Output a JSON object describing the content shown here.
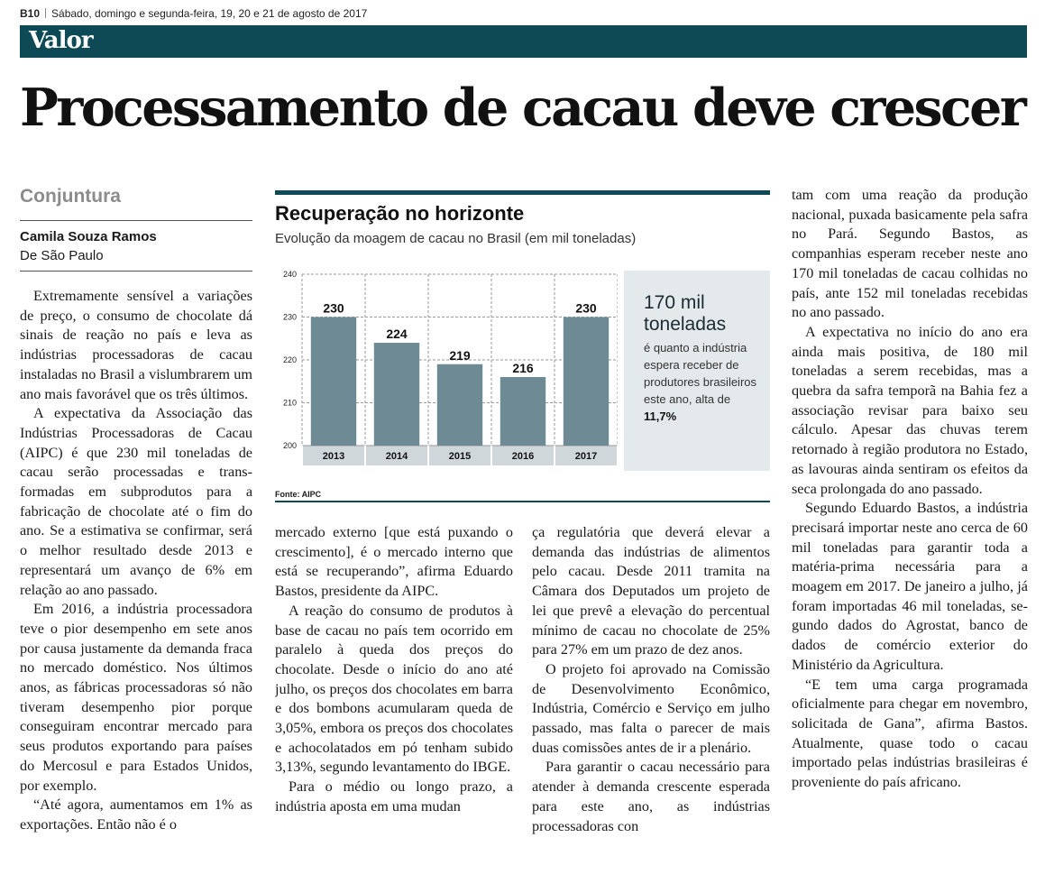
{
  "masthead": {
    "page": "B10",
    "dateline": "Sábado, domingo e segunda-feira, 19, 20 e 21 de agosto de 2017",
    "brand": "Valor"
  },
  "article": {
    "headline": "Processamento de cacau deve crescer",
    "section": "Conjuntura",
    "author": "Camila Souza Ramos",
    "location": "De São Paulo"
  },
  "columns": {
    "col1": [
      "Extremamente sensível a va­riações de preço, o consumo de chocolate dá sinais de reação no país e leva as indústrias processa­doras de cacau instaladas no Bra­sil a vislumbrarem um ano mais favorável que os três últimos.",
      "A expectativa da Associação das Indústrias Processadoras de Cacau (AIPC) é que 230 mil toneladas de cacau serão processadas e trans­formadas em subprodutos para a fabricação de chocolate até o fim do ano. Se a estimativa se confir­mar, será o melhor resultado des­de 2013 e representará um avanço de 6% em relação ao ano passado.",
      "Em 2016, a indústria processa­dora teve o pior desempenho em sete anos por causa justamente da demanda fraca no mercado doméstico. Nos últimos anos, as fábricas processadoras só não ti­veram desempenho pior porque conseguiram encontrar mercado para seus produtos exportando para países do Mercosul e para Estados Unidos, por exemplo.",
      "“Até agora, aumentamos em 1% as exportações. Então não é o"
    ],
    "col2_cont": "mercado externo [que está pu­xando o crescimento], é o mer­cado interno que está se recupe­rando”, afirma Eduardo Bastos, presidente da AIPC.",
    "col2": [
      "A reação do consumo de pro­dutos à base de cacau no país tem ocorrido em paralelo à queda dos preços do chocolate. Desde o início do ano até julho, os preços dos chocolates em barra e dos bombons acumularam queda de 3,05%, embora os preços dos cho­colates e achocolatados em pó tenham subido 3,13%, segundo levantamento do IBGE.",
      "Para o médio ou longo prazo, a indústria aposta em uma mudan­"
    ],
    "col3_cont": "ça regulatória que deverá elevar a demanda das indústrias de ali­mentos pelo cacau. Desde 2011 tramita na Câmara dos Deputados um projeto de lei que prevê a ele­vação do percentual mínimo de cacau no chocolate de 25% para 27% em um prazo de dez anos.",
    "col3": [
      "O projeto foi aprovado na Co­missão de Desenvolvimento Eco­nômico, Indústria, Comércio e Serviço em julho passado, mas falta o parecer de mais duas co­missões antes de ir a plenário.",
      "Para garantir o cacau necessá­rio para atender à demanda cres­cente esperada para este ano, as indústrias processadoras con­"
    ],
    "col4_cont": "tam com uma reação da produ­ção nacional, puxada basica­mente pela safra no Pará. Segun­do Bastos, as companhias espe­ram receber neste ano 170 mil toneladas de cacau colhidas no país, ante 152 mil toneladas rece­bidas no ano passado.",
    "col4": [
      "A expectativa no início do ano era ainda mais positiva, de 180 mil toneladas a serem recebidas, mas a quebra da safra temporã na Bahia fez a associação revisar pa­ra baixo seu cálculo. Apesar das chuvas terem retornado à região produtora no Estado, as lavouras ainda sentiram os efeitos da seca prolongada do ano passado.",
      "Segundo Eduardo Bastos, a in­dústria precisará importar neste ano cerca de 60 mil toneladas pa­ra garantir toda a matéria-prima necessária para a moagem em 2017. De janeiro a julho, já foram importadas 46 mil toneladas, se­gundo dados do Agrostat, banco de dados de comércio exterior do Ministério da Agricultura.",
      "“E tem uma carga programa­da oficialmente para chegar em novembro, solicitada de Gana”, afirma Bastos. Atualmente, qua­se todo o cacau importado pelas indústrias brasileiras é prove­niente do país africano."
    ]
  },
  "callout": {
    "big": "170 mil toneladas",
    "text": "é quanto a indústria espera receber de produtores brasileiros este ano, alta de ",
    "highlight": "11,7%"
  },
  "chart_data": {
    "type": "bar",
    "title": "Recuperação no horizonte",
    "subtitle": "Evolução da moagem de cacau no Brasil (em mil toneladas)",
    "categories": [
      "2013",
      "2014",
      "2015",
      "2016",
      "2017"
    ],
    "values": [
      230,
      224,
      219,
      216,
      230
    ],
    "ylim": [
      200,
      240
    ],
    "yticks": [
      200,
      210,
      220,
      230,
      240
    ],
    "source": "Fonte: AIPC",
    "colors": {
      "bar": "#6e8a94",
      "axis_band": "#cfd7db",
      "grid": "#9a9a9a",
      "rule": "#0d4a55"
    }
  }
}
